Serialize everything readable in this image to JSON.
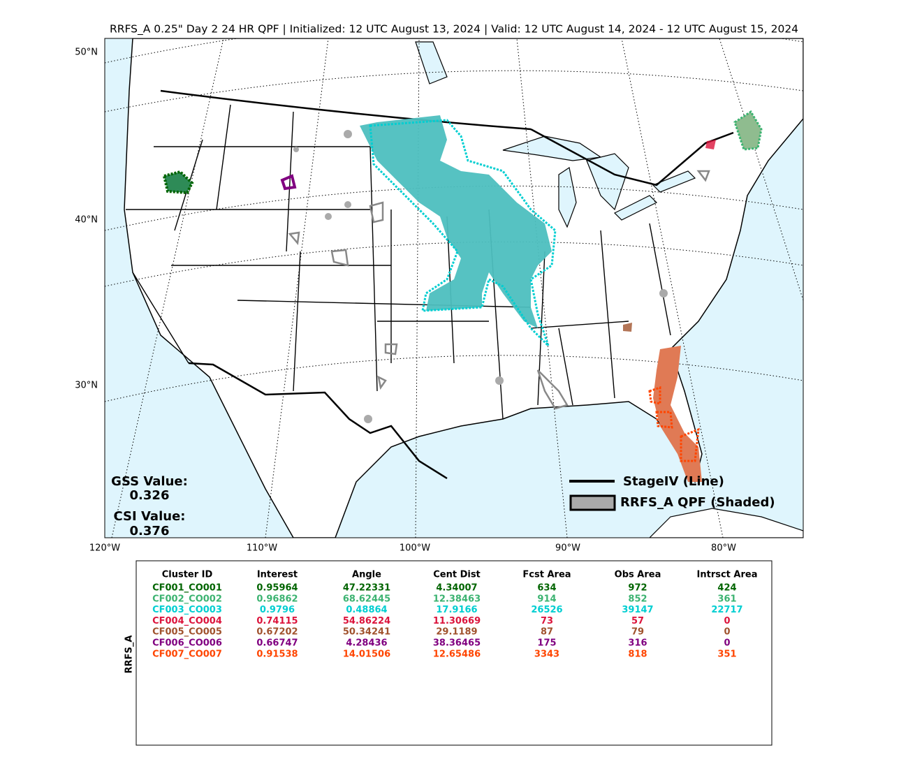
{
  "header": {
    "title": "RRFS_A 0.25\" Day 2 24 HR QPF | Initialized: 12 UTC August 13, 2024 | Valid: 12 UTC August 14, 2024 - 12 UTC August 15, 2024"
  },
  "map": {
    "lat_labels": [
      "50°N",
      "40°N",
      "30°N"
    ],
    "lon_labels": [
      "120°W",
      "110°W",
      "100°W",
      "90°W",
      "80°W"
    ],
    "scores": {
      "gss_label": "GSS Value:",
      "gss": 0.326,
      "csi_label": "CSI Value:",
      "csi": 0.376
    },
    "legend": {
      "line": "StageIV (Line)",
      "shaded": "RRFS_A QPF (Shaded)"
    }
  },
  "table": {
    "side_label": "RRFS_A",
    "columns": [
      "Cluster ID",
      "Interest",
      "Angle",
      "Cent Dist",
      "Fcst Area",
      "Obs Area",
      "Intrsct Area"
    ],
    "rows": [
      {
        "color": "#006400",
        "cells": [
          "CF001_CO001",
          0.95964,
          47.22331,
          4.34007,
          634,
          972,
          424
        ]
      },
      {
        "color": "#3cb371",
        "cells": [
          "CF002_CO002",
          0.96862,
          68.62445,
          12.38463,
          914,
          852,
          361
        ]
      },
      {
        "color": "#00ced1",
        "cells": [
          "CF003_CO003",
          0.9796,
          0.48864,
          17.9166,
          26526,
          39147,
          22717
        ]
      },
      {
        "color": "#dc143c",
        "cells": [
          "CF004_CO004",
          0.74115,
          54.86224,
          11.30669,
          73,
          57,
          0
        ]
      },
      {
        "color": "#a0522d",
        "cells": [
          "CF005_CO005",
          0.67202,
          50.34241,
          29.1189,
          87,
          79,
          0
        ]
      },
      {
        "color": "#800080",
        "cells": [
          "CF006_CO006",
          0.66747,
          4.28436,
          38.36465,
          175,
          316,
          0
        ]
      },
      {
        "color": "#ff4500",
        "cells": [
          "CF007_CO007",
          0.91538,
          14.01506,
          12.65486,
          3343,
          818,
          351
        ]
      }
    ]
  }
}
